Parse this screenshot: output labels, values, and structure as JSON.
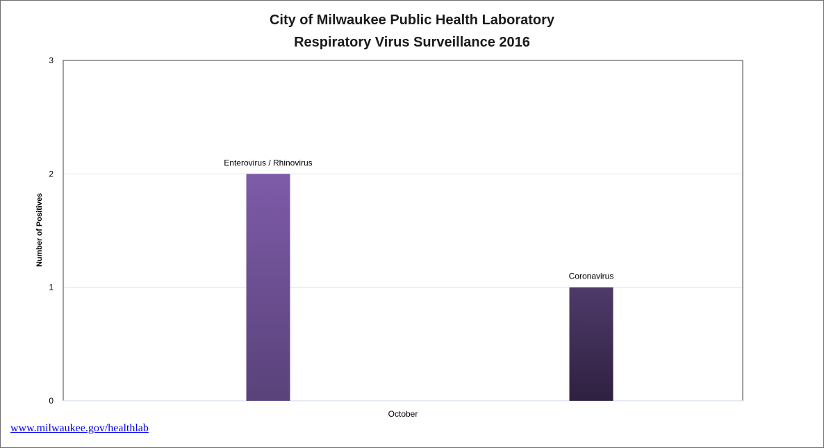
{
  "chart_data": {
    "type": "bar",
    "title": "City of Milwaukee Public Health Laboratory",
    "subtitle": "Respiratory Virus Surveillance 2016",
    "xlabel": "October",
    "ylabel": "Number of Positives",
    "ylim": [
      0,
      3
    ],
    "yticks": [
      "0",
      "1",
      "2",
      "3"
    ],
    "grid": true,
    "legend": "none",
    "categories": [
      "Enterovirus / Rhinovirus",
      "Coronavirus"
    ],
    "values": [
      2,
      1
    ],
    "colors": {
      "enterovirus_top": "#7e5ba8",
      "enterovirus_bottom": "#59427a",
      "coronavirus_top": "#4f3a6a",
      "coronavirus_bottom": "#2e2140",
      "gridline": "#dde3ef",
      "axis": "#404040"
    }
  },
  "footer": {
    "link_text": "www.milwaukee.gov/healthlab"
  }
}
